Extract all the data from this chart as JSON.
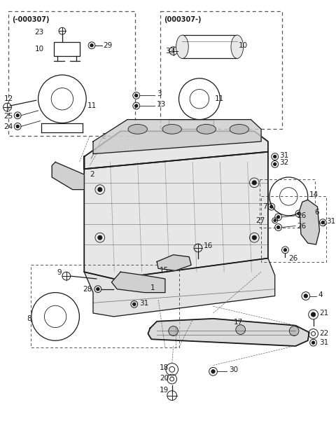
{
  "bg_color": "#ffffff",
  "line_color": "#1a1a1a",
  "box1_label": "(-000307)",
  "box2_label": "(000307-)",
  "font_size": 7.5,
  "figsize": [
    4.8,
    6.01
  ],
  "dpi": 100
}
